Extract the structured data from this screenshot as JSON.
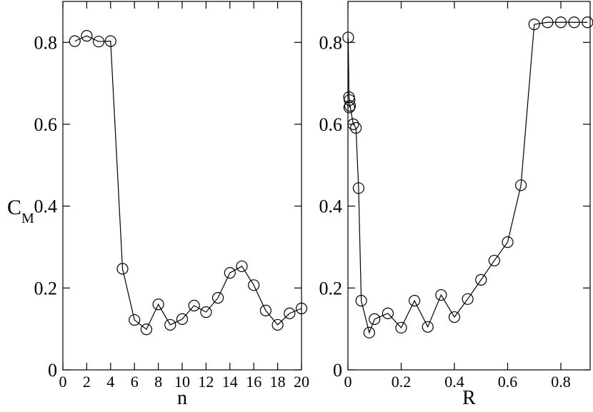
{
  "chart_data": [
    {
      "type": "line",
      "xlabel": "n",
      "ylabel": {
        "text": "C",
        "subscript": "M"
      },
      "color": "#000000",
      "x": [
        1,
        2,
        3,
        4,
        5,
        6,
        7,
        8,
        9,
        10,
        11,
        12,
        13,
        14,
        15,
        16,
        17,
        18,
        19,
        20
      ],
      "values": [
        0.803,
        0.816,
        0.802,
        0.803,
        0.247,
        0.122,
        0.099,
        0.16,
        0.11,
        0.124,
        0.157,
        0.141,
        0.176,
        0.237,
        0.253,
        0.207,
        0.145,
        0.11,
        0.138,
        0.15
      ],
      "xlim": [
        0,
        20
      ],
      "xticks": [
        0,
        2,
        4,
        6,
        8,
        10,
        12,
        14,
        16,
        18,
        20
      ],
      "ylim": [
        0,
        0.9
      ],
      "yticks": [
        0,
        0.2,
        0.4,
        0.6,
        0.8
      ]
    },
    {
      "type": "line",
      "xlabel": "R",
      "color": "#000000",
      "x": [
        0.001,
        0.004,
        0.006,
        0.005,
        0.008,
        0.02,
        0.03,
        0.04,
        0.05,
        0.08,
        0.1,
        0.15,
        0.2,
        0.25,
        0.3,
        0.35,
        0.4,
        0.45,
        0.5,
        0.55,
        0.6,
        0.65,
        0.7,
        0.75,
        0.8,
        0.85,
        0.9
      ],
      "values": [
        0.812,
        0.666,
        0.659,
        0.641,
        0.645,
        0.6,
        0.591,
        0.444,
        0.169,
        0.091,
        0.124,
        0.138,
        0.103,
        0.169,
        0.105,
        0.183,
        0.129,
        0.173,
        0.22,
        0.267,
        0.312,
        0.451,
        0.844,
        0.849,
        0.849,
        0.849,
        0.849
      ],
      "xlim": [
        0,
        0.91
      ],
      "xticks": [
        0,
        0.2,
        0.4,
        0.6,
        0.8
      ],
      "ylim": [
        0,
        0.9
      ],
      "yticks": [
        0,
        0.2,
        0.4,
        0.6,
        0.8
      ]
    }
  ]
}
